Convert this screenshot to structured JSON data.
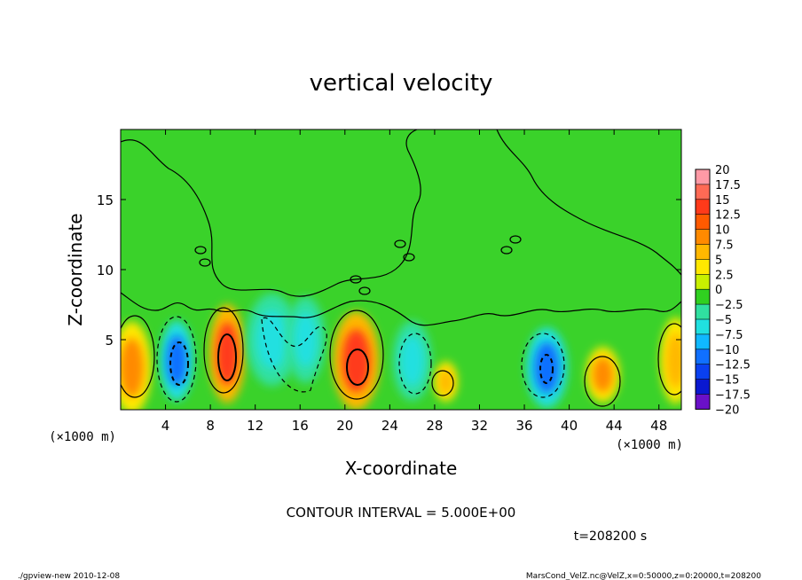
{
  "chart_data": {
    "type": "heatmap",
    "title": "vertical velocity",
    "xlabel": "X-coordinate",
    "ylabel": "Z-coordinate",
    "x_unit": "(×1000 m)",
    "y_unit": "(×1000 m)",
    "xlim": [
      0,
      50
    ],
    "ylim": [
      0,
      20
    ],
    "x_ticks": [
      "4",
      "8",
      "12",
      "16",
      "20",
      "24",
      "28",
      "32",
      "36",
      "40",
      "44",
      "48"
    ],
    "y_ticks": [
      "5",
      "10",
      "15"
    ],
    "colorbar_labels": [
      "20",
      "17.5",
      "15",
      "12.5",
      "10",
      "7.5",
      "5",
      "2.5",
      "0",
      "−2.5",
      "−5",
      "−7.5",
      "−10",
      "−12.5",
      "−15",
      "−17.5",
      "−20"
    ],
    "colorbar_colors": [
      "#ff9aa6",
      "#ff6a55",
      "#ff3a1a",
      "#ff5a00",
      "#ff8a00",
      "#ffb800",
      "#ffe800",
      "#c8f000",
      "#30d020",
      "#30e0a0",
      "#20e0e0",
      "#10b8ff",
      "#1070ff",
      "#0a40f0",
      "#0a18d0",
      "#6a10c8"
    ],
    "cells": [
      {
        "x": 1,
        "z": 3,
        "value": 9,
        "rx": 1.5,
        "rz": 3
      },
      {
        "x": 5,
        "z": 3.5,
        "value": -12,
        "rx": 1.3,
        "rz": 2.6
      },
      {
        "x": 9.5,
        "z": 4,
        "value": 13,
        "rx": 1.4,
        "rz": 3.2
      },
      {
        "x": 13.5,
        "z": 5,
        "value": -6,
        "rx": 2,
        "rz": 3
      },
      {
        "x": 16.5,
        "z": 5,
        "value": -6,
        "rx": 1.5,
        "rz": 2.8
      },
      {
        "x": 21,
        "z": 3.5,
        "value": 13,
        "rx": 1.8,
        "rz": 3.2
      },
      {
        "x": 26,
        "z": 3.5,
        "value": -7,
        "rx": 1.5,
        "rz": 2.6
      },
      {
        "x": 29,
        "z": 2,
        "value": 6,
        "rx": 0.9,
        "rz": 1.3
      },
      {
        "x": 38,
        "z": 3,
        "value": -11,
        "rx": 1.6,
        "rz": 2.6
      },
      {
        "x": 43,
        "z": 2.5,
        "value": 8,
        "rx": 1.3,
        "rz": 1.8
      },
      {
        "x": 49.5,
        "z": 3.5,
        "value": 6,
        "rx": 1.2,
        "rz": 2.8
      }
    ],
    "contour_interval_text": "CONTOUR INTERVAL = 5.000E+00"
  },
  "time_text": "t=208200 s",
  "footer_left": "./gpview-new  2010-12-08",
  "footer_right": "MarsCond_VelZ.nc@VelZ,x=0:50000,z=0:20000,t=208200"
}
